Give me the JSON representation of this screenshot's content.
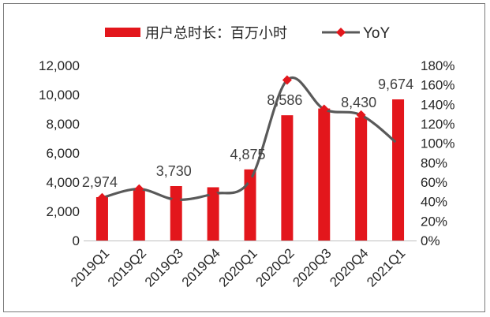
{
  "chart_data": {
    "type": "bar",
    "categories": [
      "2019Q1",
      "2019Q2",
      "2019Q3",
      "2019Q4",
      "2020Q1",
      "2020Q2",
      "2020Q3",
      "2020Q4",
      "2021Q1"
    ],
    "series": [
      {
        "name": "用户总时长：百万小时",
        "type": "bar",
        "axis": "left",
        "values": [
          2974,
          3450,
          3730,
          3650,
          4875,
          8586,
          9050,
          8430,
          9674
        ],
        "data_labels": [
          "2,974",
          null,
          "3,730",
          null,
          "4,875",
          "8,586",
          null,
          "8,430",
          "9,674"
        ],
        "color": "#e3161c"
      },
      {
        "name": "YoY",
        "type": "line",
        "axis": "right",
        "values": [
          44,
          53,
          42,
          48,
          62,
          165,
          135,
          129,
          99
        ],
        "color": "#595959",
        "marker": "diamond",
        "marker_color": "#e3161c"
      }
    ],
    "y_left": {
      "min": 0,
      "max": 12000,
      "ticks": [
        0,
        2000,
        4000,
        6000,
        8000,
        10000,
        12000
      ],
      "tick_labels": [
        "0",
        "2,000",
        "4,000",
        "6,000",
        "8,000",
        "10,000",
        "12,000"
      ]
    },
    "y_right": {
      "min": 0,
      "max": 180,
      "ticks": [
        0,
        20,
        40,
        60,
        80,
        100,
        120,
        140,
        160,
        180
      ],
      "tick_labels": [
        "0%",
        "20%",
        "40%",
        "60%",
        "80%",
        "100%",
        "120%",
        "140%",
        "160%",
        "180%"
      ]
    },
    "legend": "top",
    "grid": false
  }
}
